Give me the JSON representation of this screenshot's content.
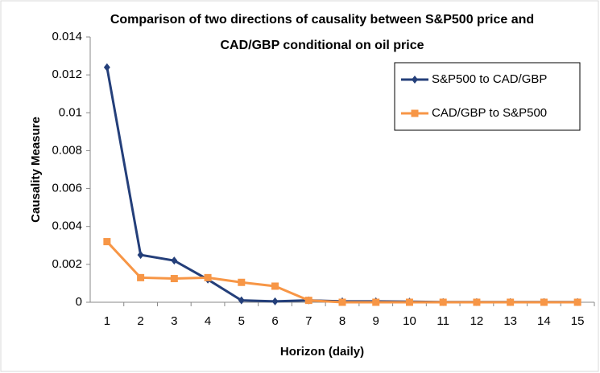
{
  "chart_data": {
    "type": "line",
    "title": [
      "Comparison of two directions of causality between S&P500 price and",
      "CAD/GBP conditional on oil price"
    ],
    "xlabel": "Horizon (daily)",
    "ylabel": "Causality Measure",
    "categories": [
      "1",
      "2",
      "3",
      "4",
      "5",
      "6",
      "7",
      "8",
      "9",
      "10",
      "11",
      "12",
      "13",
      "14",
      "15"
    ],
    "series": [
      {
        "name": "S&P500 to CAD/GBP",
        "color": "#243f7a",
        "marker": "diamond",
        "values": [
          0.0124,
          0.0025,
          0.0022,
          0.0012,
          0.0001,
          5e-05,
          0.0001,
          5e-05,
          5e-05,
          3e-05,
          1e-05,
          1e-05,
          1e-05,
          1e-05,
          1e-05
        ]
      },
      {
        "name": "CAD/GBP to S&P500",
        "color": "#f79646",
        "marker": "square",
        "values": [
          0.0032,
          0.0013,
          0.00125,
          0.0013,
          0.00105,
          0.00085,
          0.0001,
          0,
          0,
          0,
          0,
          0,
          0,
          0,
          0
        ]
      }
    ],
    "ylim": [
      0,
      0.014
    ],
    "yticks": [
      0,
      0.002,
      0.004,
      0.006,
      0.008,
      0.01,
      0.012,
      0.014
    ],
    "grid": false,
    "legend": "upper right"
  }
}
